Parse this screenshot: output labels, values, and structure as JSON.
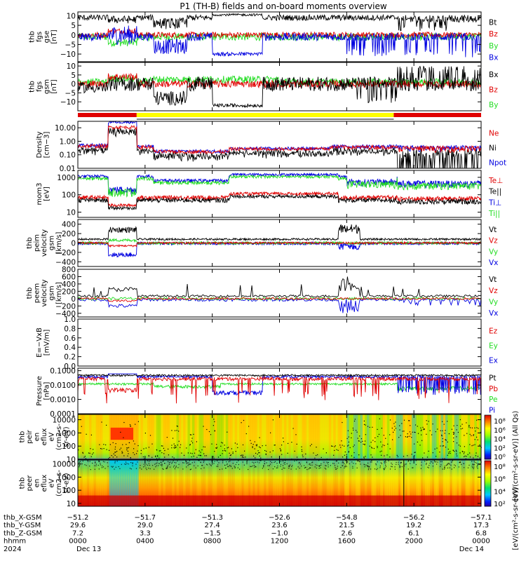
{
  "title": "P1 (TH-B) fields and on-board moments overview",
  "colors": {
    "black": "#000000",
    "red": "#e00000",
    "green": "#22dd22",
    "blue": "#0000e0",
    "yellow": "#ffff00"
  },
  "chart_data": {
    "type": "line",
    "x_range": [
      "2024-12-13 00:00",
      "2024-12-14 00:00"
    ],
    "x_ticks_hours": [
      0,
      4,
      8,
      12,
      16,
      20,
      24
    ],
    "mode_bar": [
      {
        "start_hour": 0,
        "end_hour": 3.5,
        "color": "red"
      },
      {
        "start_hour": 3.5,
        "end_hour": 18.8,
        "color": "yellow"
      },
      {
        "start_hour": 18.8,
        "end_hour": 24,
        "color": "red"
      }
    ],
    "panels": [
      {
        "id": "fgs-gse",
        "ylabel": [
          "thb",
          "fgs",
          "gse",
          "[nT]"
        ],
        "ylim": [
          -14,
          12
        ],
        "log": false,
        "ticks": [
          10,
          5,
          0,
          -5,
          -10
        ],
        "tick_labels": [
          "10",
          "5",
          "0",
          "−5",
          "−10"
        ],
        "legend": [
          {
            "name": "Bt",
            "color": "black"
          },
          {
            "name": "Bz",
            "color": "red"
          },
          {
            "name": "By",
            "color": "green"
          },
          {
            "name": "Bx",
            "color": "blue"
          }
        ]
      },
      {
        "id": "fgs-gsm",
        "ylabel": [
          "thb",
          "fgs",
          "gsm",
          "[nT]"
        ],
        "ylim": [
          -15,
          12
        ],
        "log": false,
        "ticks": [
          10,
          5,
          0,
          -5,
          -10
        ],
        "tick_labels": [
          "10",
          "5",
          "0",
          "−5",
          "−10"
        ],
        "legend": [
          {
            "name": "Bx",
            "color": "black"
          },
          {
            "name": "Bz",
            "color": "red"
          },
          {
            "name": "By",
            "color": "green"
          }
        ]
      },
      {
        "id": "density",
        "ylabel": [
          "Density",
          "[cm−3]"
        ],
        "ylim": [
          0.01,
          30
        ],
        "log": true,
        "ticks": [
          10,
          1,
          0.1,
          0.01
        ],
        "tick_labels": [
          "10.00",
          "1.00",
          "0.10",
          "0.01"
        ],
        "legend": [
          {
            "name": "Ne",
            "color": "red"
          },
          {
            "name": "Ni",
            "color": "black"
          },
          {
            "name": "Npot",
            "color": "blue"
          }
        ]
      },
      {
        "id": "temperature",
        "ylabel": [
          "mom3",
          "[eV]"
        ],
        "ylim": [
          5,
          2500
        ],
        "log": true,
        "ticks": [
          1000,
          100,
          10
        ],
        "tick_labels": [
          "1000",
          "100",
          "10"
        ],
        "legend": [
          {
            "name": "Te⊥",
            "color": "red"
          },
          {
            "name": "Te||",
            "color": "black"
          },
          {
            "name": "Ti⊥",
            "color": "blue"
          },
          {
            "name": "Ti||",
            "color": "green"
          }
        ]
      },
      {
        "id": "peim-velocity",
        "ylabel": [
          "thb",
          "peim",
          "velocity",
          "gsm",
          "[km/s]"
        ],
        "ylim": [
          -500,
          500
        ],
        "log": false,
        "ticks": [
          400,
          200,
          0,
          -200,
          -400
        ],
        "tick_labels": [
          "400",
          "200",
          "0",
          "−200",
          "−400"
        ],
        "legend": [
          {
            "name": "Vt",
            "color": "black"
          },
          {
            "name": "Vz",
            "color": "red"
          },
          {
            "name": "Vy",
            "color": "green"
          },
          {
            "name": "Vx",
            "color": "blue"
          }
        ]
      },
      {
        "id": "peem-velocity",
        "ylabel": [
          "thb",
          "peem",
          "velocity",
          "gsm",
          "[km/s]"
        ],
        "ylim": [
          -500,
          800
        ],
        "log": false,
        "ticks": [
          800,
          600,
          400,
          200,
          0,
          -200,
          -400
        ],
        "tick_labels": [
          "800",
          "600",
          "400",
          "200",
          "0",
          "−200",
          "−400"
        ],
        "legend": [
          {
            "name": "Vt",
            "color": "black"
          },
          {
            "name": "Vz",
            "color": "red"
          },
          {
            "name": "Vy",
            "color": "green"
          },
          {
            "name": "Vx",
            "color": "blue"
          }
        ]
      },
      {
        "id": "e-field",
        "ylabel": [
          "E=−VxB",
          "[mV/m]"
        ],
        "ylim": [
          0,
          1
        ],
        "log": false,
        "ticks": [
          1.0,
          0.8,
          0.6,
          0.4,
          0.2,
          0.0
        ],
        "tick_labels": [
          "1.0",
          "0.8",
          "0.6",
          "0.4",
          "0.2",
          "0.0"
        ],
        "legend": [
          {
            "name": "Ez",
            "color": "red"
          },
          {
            "name": "Ey",
            "color": "green"
          },
          {
            "name": "Ex",
            "color": "blue"
          }
        ]
      },
      {
        "id": "pressure",
        "ylabel": [
          "Pressure",
          "[nPa]"
        ],
        "ylim": [
          0.0001,
          0.15
        ],
        "log": true,
        "ticks": [
          0.1,
          0.01,
          0.001,
          0.0001
        ],
        "tick_labels": [
          "0.1000",
          "0.0100",
          "0.0010",
          "0.0001"
        ],
        "legend": [
          {
            "name": "Pt",
            "color": "black"
          },
          {
            "name": "Pb",
            "color": "red"
          },
          {
            "name": "Pe",
            "color": "green"
          },
          {
            "name": "Pi",
            "color": "blue"
          }
        ]
      },
      {
        "id": "peir-spectrogram",
        "ylabel": [
          "thb",
          "peir",
          "en",
          "eflux",
          "eV",
          "(cm2-s-",
          "sr-eV)"
        ],
        "ylim": [
          10,
          25000
        ],
        "log": true,
        "ticks": [
          10000,
          1000,
          100,
          10
        ],
        "tick_labels": [
          "10000",
          "1000",
          "100",
          "10"
        ],
        "colorbar_ticks": [
          "10⁸",
          "10⁶",
          "10⁴",
          "10²",
          "10⁰"
        ]
      },
      {
        "id": "peer-spectrogram",
        "ylabel": [
          "thb",
          "peer",
          "en",
          "eflux",
          "eV",
          "(cm2-s-",
          "sr-eV)"
        ],
        "ylim": [
          6,
          20000
        ],
        "log": true,
        "ticks": [
          10000,
          1000,
          100,
          10
        ],
        "tick_labels": [
          "10000",
          "1000",
          "100",
          "10"
        ],
        "colorbar_ticks": [
          "10⁸",
          "10⁶",
          "10⁴",
          "10²"
        ]
      }
    ],
    "colorbar_label": "[eV/(cm²-s-sr-eV)] (All Qs)",
    "colorbar_label2": "[eV/(cm²-s-sr-eV)]",
    "ephemeris": {
      "rows": [
        {
          "label": "thb_X-GSM",
          "values": [
            "−51.2",
            "−51.7",
            "−51.3",
            "−52.6",
            "−54.8",
            "−56.2",
            "−57.1"
          ]
        },
        {
          "label": "thb_Y-GSM",
          "values": [
            "29.6",
            "29.0",
            "27.4",
            "23.6",
            "21.5",
            "19.2",
            "17.3"
          ]
        },
        {
          "label": "thb_Z-GSM",
          "values": [
            "7.2",
            "3.3",
            "−1.5",
            "−1.0",
            "2.6",
            "6.1",
            "6.8"
          ]
        },
        {
          "label": "hhmm",
          "values": [
            "0000",
            "0400",
            "0800",
            "1200",
            "1600",
            "2000",
            "0000"
          ]
        },
        {
          "label": "2024",
          "values": [
            "Dec 13",
            "",
            "",
            "",
            "",
            "",
            "Dec 14"
          ]
        }
      ]
    }
  }
}
